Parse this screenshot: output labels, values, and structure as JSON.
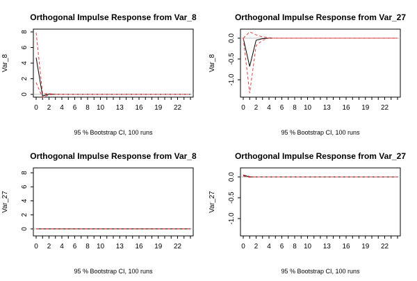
{
  "chart_data": [
    {
      "type": "line",
      "title": "Orthogonal Impulse Response from Var_8",
      "ylabel": "Var_8",
      "xlabel": "95 % Bootstrap CI,  100 runs",
      "xlim": [
        0,
        24
      ],
      "ylim": [
        0,
        8
      ],
      "xticks": [
        0,
        2,
        4,
        6,
        8,
        10,
        13,
        16,
        19,
        22
      ],
      "yticks": [
        0,
        2,
        4,
        6,
        8
      ],
      "grid": false,
      "x": [
        0,
        1,
        2,
        3,
        4,
        5,
        6,
        7,
        8,
        9,
        10,
        11,
        12,
        13,
        14,
        15,
        16,
        17,
        18,
        19,
        20,
        21,
        22,
        23,
        24
      ],
      "series": [
        {
          "role": "irf",
          "color": "#000000",
          "values": [
            4.7,
            -0.2,
            0.03,
            0,
            0,
            0,
            0,
            0,
            0,
            0,
            0,
            0,
            0,
            0,
            0,
            0,
            0,
            0,
            0,
            0,
            0,
            0,
            0,
            0,
            0
          ]
        },
        {
          "role": "upper",
          "color": "#e03a3a",
          "values": [
            7.9,
            0.1,
            0.08,
            0.02,
            0,
            0,
            0,
            0,
            0,
            0,
            0,
            0,
            0,
            0,
            0,
            0,
            0,
            0,
            0,
            0,
            0,
            0,
            0,
            0,
            0
          ]
        },
        {
          "role": "lower",
          "color": "#e03a3a",
          "values": [
            1.5,
            -0.4,
            -0.05,
            0,
            0,
            0,
            0,
            0,
            0,
            0,
            0,
            0,
            0,
            0,
            0,
            0,
            0,
            0,
            0,
            0,
            0,
            0,
            0,
            0,
            0
          ]
        }
      ]
    },
    {
      "type": "line",
      "title": "Orthogonal Impulse Response from Var_27",
      "ylabel": "Var_8",
      "xlabel": "95 % Bootstrap CI,  100 runs",
      "xlim": [
        0,
        24
      ],
      "ylim": [
        -1.35,
        0.15
      ],
      "xticks": [
        0,
        2,
        4,
        6,
        8,
        10,
        13,
        16,
        19,
        22
      ],
      "yticks": [
        0.0,
        -0.5,
        -1.0
      ],
      "grid": false,
      "x": [
        0,
        1,
        2,
        3,
        4,
        5,
        6,
        7,
        8,
        9,
        10,
        11,
        12,
        13,
        14,
        15,
        16,
        17,
        18,
        19,
        20,
        21,
        22,
        23,
        24
      ],
      "series": [
        {
          "role": "irf",
          "color": "#000000",
          "values": [
            0,
            -0.68,
            -0.05,
            -0.01,
            0,
            0,
            0,
            0,
            0,
            0,
            0,
            0,
            0,
            0,
            0,
            0,
            0,
            0,
            0,
            0,
            0,
            0,
            0,
            0,
            0
          ]
        },
        {
          "role": "upper",
          "color": "#e03a3a",
          "values": [
            0,
            0.15,
            0.08,
            0.03,
            0.01,
            0,
            0,
            0,
            0,
            0,
            0,
            0,
            0,
            0,
            0,
            0,
            0,
            0,
            0,
            0,
            0,
            0,
            0,
            0,
            0
          ]
        },
        {
          "role": "lower",
          "color": "#e03a3a",
          "values": [
            0,
            -1.32,
            -0.18,
            -0.05,
            0,
            0,
            0,
            0,
            0,
            0,
            0,
            0,
            0,
            0,
            0,
            0,
            0,
            0,
            0,
            0,
            0,
            0,
            0,
            0,
            0
          ]
        }
      ]
    },
    {
      "type": "line",
      "title": "Orthogonal Impulse Response from Var_8",
      "ylabel": "Var_27",
      "xlabel": "95 % Bootstrap CI,  100 runs",
      "xlim": [
        0,
        24
      ],
      "ylim": [
        -0.6,
        8.3
      ],
      "xticks": [
        0,
        2,
        4,
        6,
        8,
        10,
        13,
        16,
        19,
        22
      ],
      "yticks": [
        0,
        2,
        4,
        6,
        8
      ],
      "grid": false,
      "x": [
        0,
        1,
        2,
        3,
        4,
        5,
        6,
        7,
        8,
        9,
        10,
        11,
        12,
        13,
        14,
        15,
        16,
        17,
        18,
        19,
        20,
        21,
        22,
        23,
        24
      ],
      "series": [
        {
          "role": "irf",
          "color": "#000000",
          "values": [
            0,
            0,
            0,
            0,
            0,
            0,
            0,
            0,
            0,
            0,
            0,
            0,
            0,
            0,
            0,
            0,
            0,
            0,
            0,
            0,
            0,
            0,
            0,
            0,
            0
          ]
        },
        {
          "role": "upper",
          "color": "#e03a3a",
          "values": [
            0,
            0,
            0,
            0,
            0,
            0,
            0,
            0,
            0,
            0,
            0,
            0,
            0,
            0,
            0,
            0,
            0,
            0,
            0,
            0,
            0,
            0,
            0,
            0,
            0
          ]
        },
        {
          "role": "lower",
          "color": "#e03a3a",
          "values": [
            0,
            0,
            0,
            0,
            0,
            0,
            0,
            0,
            0,
            0,
            0,
            0,
            0,
            0,
            0,
            0,
            0,
            0,
            0,
            0,
            0,
            0,
            0,
            0,
            0
          ]
        }
      ]
    },
    {
      "type": "line",
      "title": "Orthogonal Impulse Response from Var_27",
      "ylabel": "Var_27",
      "xlabel": "95 % Bootstrap CI,  100 runs",
      "xlim": [
        0,
        24
      ],
      "ylim": [
        -1.35,
        0.15
      ],
      "xticks": [
        0,
        2,
        4,
        6,
        8,
        10,
        13,
        16,
        19,
        22
      ],
      "yticks": [
        0.0,
        -0.5,
        -1.0
      ],
      "grid": false,
      "x": [
        0,
        1,
        2,
        3,
        4,
        5,
        6,
        7,
        8,
        9,
        10,
        11,
        12,
        13,
        14,
        15,
        16,
        17,
        18,
        19,
        20,
        21,
        22,
        23,
        24
      ],
      "series": [
        {
          "role": "irf",
          "color": "#000000",
          "values": [
            0.04,
            0,
            0,
            0,
            0,
            0,
            0,
            0,
            0,
            0,
            0,
            0,
            0,
            0,
            0,
            0,
            0,
            0,
            0,
            0,
            0,
            0,
            0,
            0,
            0
          ]
        },
        {
          "role": "upper",
          "color": "#e03a3a",
          "values": [
            0.05,
            0.01,
            0,
            0,
            0,
            0,
            0,
            0,
            0,
            0,
            0,
            0,
            0,
            0,
            0,
            0,
            0,
            0,
            0,
            0,
            0,
            0,
            0,
            0,
            0
          ]
        },
        {
          "role": "lower",
          "color": "#e03a3a",
          "values": [
            0.02,
            -0.01,
            0,
            0,
            0,
            0,
            0,
            0,
            0,
            0,
            0,
            0,
            0,
            0,
            0,
            0,
            0,
            0,
            0,
            0,
            0,
            0,
            0,
            0,
            0
          ]
        }
      ]
    }
  ]
}
